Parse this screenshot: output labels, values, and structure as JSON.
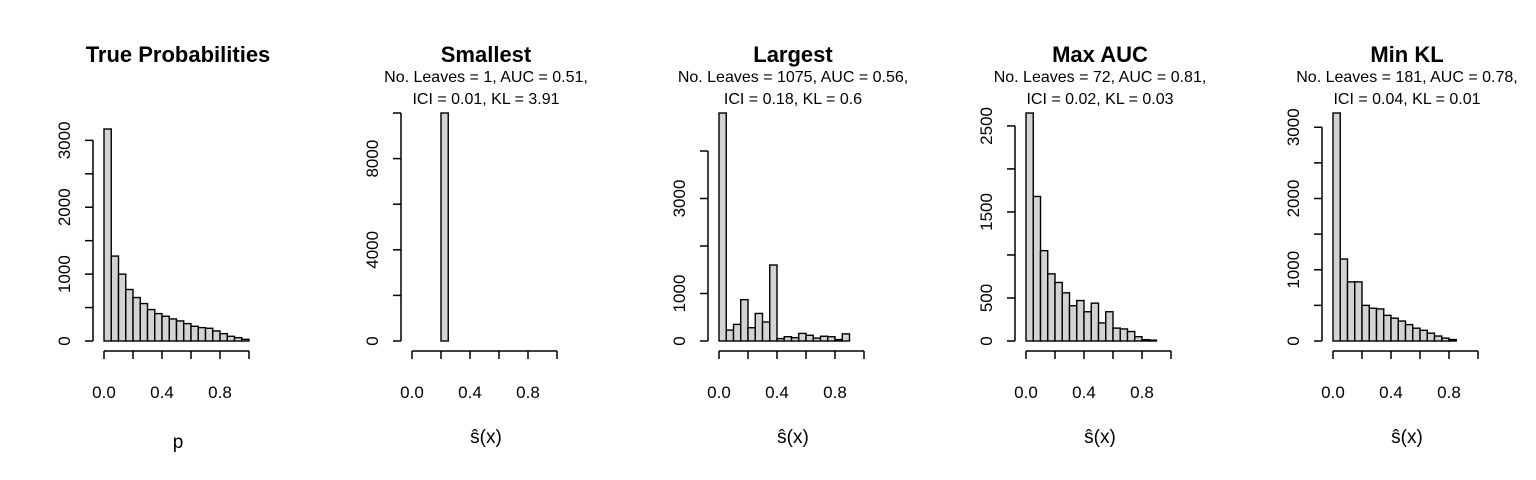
{
  "chart_data": [
    {
      "type": "bar",
      "title": "True Probabilities",
      "subtitle": [],
      "xlabel": "p",
      "ylabel": "",
      "x_range": [
        0,
        1
      ],
      "bin_width": 0.05,
      "ylim": [
        0,
        3200
      ],
      "y_ticks": [
        0,
        1000,
        2000,
        3000
      ],
      "y_minor_ticks": [
        500,
        1500,
        2500
      ],
      "x_ticks": [
        0.0,
        0.4,
        0.8
      ],
      "x_tick_labels": [
        "0.0",
        "0.4",
        "0.8"
      ],
      "values": [
        3170,
        1270,
        1000,
        770,
        650,
        560,
        470,
        410,
        370,
        330,
        300,
        260,
        220,
        200,
        190,
        150,
        110,
        70,
        50,
        25
      ],
      "grid": false
    },
    {
      "type": "bar",
      "title": "Smallest",
      "subtitle": [
        "No. Leaves = 1, AUC = 0.51,",
        "ICI = 0.01, KL = 3.91"
      ],
      "xlabel": "ŝ(x)",
      "ylabel": "",
      "x_range": [
        0,
        1
      ],
      "bin_width": 0.05,
      "ylim": [
        0,
        10000
      ],
      "y_ticks": [
        0,
        4000,
        8000
      ],
      "y_minor_ticks": [
        2000,
        6000,
        10000
      ],
      "x_ticks": [
        0.0,
        0.4,
        0.8
      ],
      "x_tick_labels": [
        "0.0",
        "0.4",
        "0.8"
      ],
      "values": [
        0,
        0,
        0,
        0,
        10000,
        0,
        0,
        0,
        0,
        0,
        0,
        0,
        0,
        0,
        0,
        0,
        0,
        0,
        0,
        0
      ],
      "grid": false
    },
    {
      "type": "bar",
      "title": "Largest",
      "subtitle": [
        "No. Leaves = 1075, AUC = 0.56,",
        "ICI = 0.18, KL = 0.6"
      ],
      "xlabel": "ŝ(x)",
      "ylabel": "",
      "x_range": [
        0,
        1
      ],
      "bin_width": 0.05,
      "ylim": [
        0,
        4800
      ],
      "y_ticks": [
        0,
        1000,
        3000
      ],
      "y_minor_ticks": [
        2000,
        4000
      ],
      "x_ticks": [
        0.0,
        0.4,
        0.8
      ],
      "x_tick_labels": [
        "0.0",
        "0.4",
        "0.8"
      ],
      "values": [
        4800,
        230,
        350,
        870,
        280,
        580,
        400,
        1600,
        50,
        90,
        70,
        160,
        120,
        60,
        100,
        90,
        30,
        150,
        0,
        0
      ],
      "grid": false
    },
    {
      "type": "bar",
      "title": "Max AUC",
      "subtitle": [
        "No. Leaves = 72, AUC = 0.81,",
        "ICI = 0.02, KL = 0.03"
      ],
      "xlabel": "ŝ(x)",
      "ylabel": "",
      "x_range": [
        0,
        1
      ],
      "bin_width": 0.05,
      "ylim": [
        0,
        2650
      ],
      "y_ticks": [
        0,
        500,
        1500,
        2500
      ],
      "y_minor_ticks": [
        1000,
        2000
      ],
      "x_ticks": [
        0.0,
        0.4,
        0.8
      ],
      "x_tick_labels": [
        "0.0",
        "0.4",
        "0.8"
      ],
      "values": [
        2650,
        1680,
        1050,
        780,
        680,
        560,
        410,
        470,
        340,
        440,
        210,
        340,
        150,
        140,
        110,
        50,
        15,
        10,
        0,
        0
      ],
      "grid": false
    },
    {
      "type": "bar",
      "title": "Min KL",
      "subtitle": [
        "No. Leaves = 181, AUC = 0.78,",
        "ICI = 0.04, KL = 0.01"
      ],
      "xlabel": "ŝ(x)",
      "ylabel": "",
      "x_range": [
        0,
        1
      ],
      "bin_width": 0.05,
      "ylim": [
        0,
        3200
      ],
      "y_ticks": [
        0,
        1000,
        2000,
        3000
      ],
      "y_minor_ticks": [
        500,
        1500,
        2500
      ],
      "x_ticks": [
        0.0,
        0.4,
        0.8
      ],
      "x_tick_labels": [
        "0.0",
        "0.4",
        "0.8"
      ],
      "values": [
        3200,
        1150,
        830,
        830,
        500,
        460,
        450,
        360,
        320,
        280,
        230,
        180,
        150,
        110,
        70,
        40,
        20,
        0,
        0,
        0
      ],
      "grid": false
    }
  ],
  "colors": {
    "bar_fill": "#d3d3d3",
    "bar_stroke": "#000000",
    "background": "#ffffff"
  }
}
